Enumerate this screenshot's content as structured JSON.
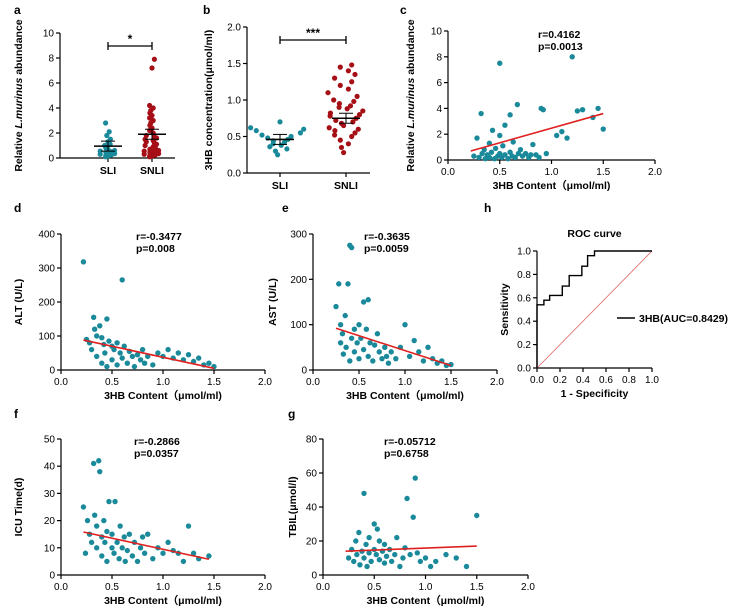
{
  "colors": {
    "teal": "#1a8a9b",
    "red": "#a50f15",
    "fit": "#e02020",
    "roc": "#000000",
    "ref": "#e06060"
  },
  "chart_data": [
    {
      "id": "a",
      "type": "scatter",
      "panel_letter": "a",
      "categories": [
        "SLI",
        "SNLI"
      ],
      "ylabel_prefix": "Relative ",
      "ylabel_italic": "L.murinus",
      "ylabel_suffix": " abundance",
      "ylim": [
        0,
        10
      ],
      "yticks": [
        "0",
        "2",
        "4",
        "6",
        "8",
        "10"
      ],
      "significance": "*",
      "groups": [
        {
          "name": "SLI",
          "mean": 0.95,
          "values": [
            0.1,
            0.15,
            0.2,
            0.25,
            0.3,
            0.35,
            0.4,
            0.45,
            0.5,
            0.55,
            0.6,
            0.7,
            0.8,
            0.9,
            1.0,
            1.1,
            1.3,
            1.5,
            1.8,
            2.1,
            2.8
          ]
        },
        {
          "name": "SNLI",
          "mean": 1.9,
          "values": [
            0.1,
            0.15,
            0.2,
            0.25,
            0.3,
            0.35,
            0.4,
            0.45,
            0.5,
            0.55,
            0.6,
            0.65,
            0.7,
            0.8,
            0.9,
            1.0,
            1.1,
            1.2,
            1.3,
            1.4,
            1.5,
            1.6,
            1.7,
            1.8,
            2.0,
            2.2,
            2.4,
            2.6,
            2.8,
            3.0,
            3.2,
            3.4,
            3.6,
            3.8,
            4.0,
            4.2,
            7.2,
            7.9
          ]
        }
      ]
    },
    {
      "id": "b",
      "type": "scatter",
      "panel_letter": "b",
      "categories": [
        "SLI",
        "SNLI"
      ],
      "ylabel": "3HB concentration(μmol/ml)",
      "ylim": [
        0,
        2
      ],
      "yticks": [
        "0.0",
        "0.5",
        "1.0",
        "1.5",
        "2.0"
      ],
      "significance": "***",
      "groups": [
        {
          "name": "SLI",
          "mean": 0.46,
          "values": [
            0.25,
            0.3,
            0.33,
            0.36,
            0.38,
            0.4,
            0.42,
            0.44,
            0.46,
            0.48,
            0.5,
            0.52,
            0.55,
            0.58,
            0.6,
            0.62,
            0.7
          ]
        },
        {
          "name": "SNLI",
          "mean": 0.75,
          "values": [
            0.28,
            0.35,
            0.4,
            0.45,
            0.5,
            0.52,
            0.55,
            0.58,
            0.6,
            0.62,
            0.65,
            0.68,
            0.7,
            0.72,
            0.75,
            0.78,
            0.8,
            0.82,
            0.85,
            0.88,
            0.9,
            0.92,
            0.95,
            0.98,
            1.0,
            1.05,
            1.1,
            1.15,
            1.2,
            1.25,
            1.3,
            1.35,
            1.4,
            1.45,
            1.48
          ]
        }
      ]
    },
    {
      "id": "c",
      "type": "scatter",
      "panel_letter": "c",
      "xlabel": "3HB Content（μmol/ml)",
      "ylabel_prefix": "Relative ",
      "ylabel_italic": "L.murinus",
      "ylabel_suffix": " abundance",
      "xlim": [
        0,
        2
      ],
      "ylim": [
        0,
        10
      ],
      "xticks": [
        "0.0",
        "0.5",
        "1.0",
        "1.5",
        "2.0"
      ],
      "yticks": [
        "0",
        "2",
        "4",
        "6",
        "8",
        "10"
      ],
      "r_text": "r=0.4162",
      "p_text": "p=0.0013",
      "fit": {
        "x": [
          0.22,
          1.5
        ],
        "y": [
          0.7,
          3.6
        ]
      },
      "points": [
        [
          0.25,
          0.3
        ],
        [
          0.28,
          1.7
        ],
        [
          0.3,
          0.2
        ],
        [
          0.32,
          3.6
        ],
        [
          0.33,
          0.5
        ],
        [
          0.35,
          0.8
        ],
        [
          0.36,
          0.1
        ],
        [
          0.38,
          0.4
        ],
        [
          0.4,
          1.3
        ],
        [
          0.4,
          0.2
        ],
        [
          0.42,
          0.6
        ],
        [
          0.43,
          2.3
        ],
        [
          0.45,
          0.1
        ],
        [
          0.46,
          0.9
        ],
        [
          0.48,
          0.3
        ],
        [
          0.5,
          7.5
        ],
        [
          0.5,
          1.9
        ],
        [
          0.5,
          0.5
        ],
        [
          0.52,
          0.2
        ],
        [
          0.53,
          1.1
        ],
        [
          0.55,
          0.4
        ],
        [
          0.55,
          2.7
        ],
        [
          0.58,
          0.1
        ],
        [
          0.6,
          0.6
        ],
        [
          0.6,
          3.5
        ],
        [
          0.62,
          0.3
        ],
        [
          0.63,
          1.4
        ],
        [
          0.65,
          0.2
        ],
        [
          0.67,
          4.3
        ],
        [
          0.68,
          0.5
        ],
        [
          0.7,
          0.8
        ],
        [
          0.72,
          0.3
        ],
        [
          0.75,
          0.5
        ],
        [
          0.78,
          0.2
        ],
        [
          0.8,
          0.4
        ],
        [
          0.82,
          1.2
        ],
        [
          0.85,
          0.4
        ],
        [
          0.88,
          0.2
        ],
        [
          0.9,
          4.0
        ],
        [
          0.92,
          3.9
        ],
        [
          0.95,
          0.5
        ],
        [
          1.05,
          1.9
        ],
        [
          1.1,
          2.2
        ],
        [
          1.15,
          1.7
        ],
        [
          1.2,
          8.0
        ],
        [
          1.25,
          3.8
        ],
        [
          1.3,
          3.9
        ],
        [
          1.4,
          3.3
        ],
        [
          1.45,
          4.0
        ],
        [
          1.5,
          2.4
        ]
      ]
    },
    {
      "id": "d",
      "type": "scatter",
      "panel_letter": "d",
      "xlabel": "3HB Content（μmol/ml)",
      "ylabel": "ALT (U/L)",
      "xlim": [
        0,
        2
      ],
      "ylim": [
        0,
        400
      ],
      "xticks": [
        "0.0",
        "0.5",
        "1.0",
        "1.5",
        "2.0"
      ],
      "yticks": [
        "0",
        "100",
        "200",
        "300",
        "400"
      ],
      "r_text": "r=-0.3477",
      "p_text": "p=0.008",
      "fit": {
        "x": [
          0.22,
          1.5
        ],
        "y": [
          88,
          5
        ]
      },
      "points": [
        [
          0.22,
          318
        ],
        [
          0.25,
          90
        ],
        [
          0.28,
          80
        ],
        [
          0.3,
          60
        ],
        [
          0.32,
          155
        ],
        [
          0.33,
          120
        ],
        [
          0.35,
          100
        ],
        [
          0.35,
          40
        ],
        [
          0.38,
          130
        ],
        [
          0.4,
          95
        ],
        [
          0.4,
          20
        ],
        [
          0.42,
          75
        ],
        [
          0.43,
          50
        ],
        [
          0.45,
          150
        ],
        [
          0.45,
          10
        ],
        [
          0.47,
          85
        ],
        [
          0.5,
          70
        ],
        [
          0.5,
          30
        ],
        [
          0.52,
          60
        ],
        [
          0.55,
          80
        ],
        [
          0.55,
          15
        ],
        [
          0.58,
          50
        ],
        [
          0.6,
          265
        ],
        [
          0.6,
          35
        ],
        [
          0.62,
          70
        ],
        [
          0.65,
          20
        ],
        [
          0.67,
          55
        ],
        [
          0.7,
          40
        ],
        [
          0.72,
          10
        ],
        [
          0.75,
          45
        ],
        [
          0.78,
          30
        ],
        [
          0.8,
          60
        ],
        [
          0.82,
          20
        ],
        [
          0.85,
          40
        ],
        [
          0.9,
          15
        ],
        [
          0.95,
          50
        ],
        [
          1.0,
          40
        ],
        [
          1.05,
          60
        ],
        [
          1.1,
          35
        ],
        [
          1.15,
          50
        ],
        [
          1.2,
          30
        ],
        [
          1.25,
          45
        ],
        [
          1.3,
          25
        ],
        [
          1.35,
          35
        ],
        [
          1.4,
          15
        ],
        [
          1.45,
          20
        ],
        [
          1.5,
          10
        ]
      ]
    },
    {
      "id": "e",
      "type": "scatter",
      "panel_letter": "e",
      "xlabel": "3HB Content（μmol/ml)",
      "ylabel": "AST (U/L)",
      "xlim": [
        0,
        2
      ],
      "ylim": [
        0,
        300
      ],
      "xticks": [
        "0.0",
        "0.5",
        "1.0",
        "1.5",
        "2.0"
      ],
      "yticks": [
        "0",
        "100",
        "200",
        "300"
      ],
      "r_text": "r=-0.3635",
      "p_text": "p=0.0059",
      "fit": {
        "x": [
          0.25,
          1.5
        ],
        "y": [
          92,
          10
        ]
      },
      "points": [
        [
          0.25,
          140
        ],
        [
          0.28,
          190
        ],
        [
          0.3,
          100
        ],
        [
          0.3,
          60
        ],
        [
          0.32,
          80
        ],
        [
          0.33,
          35
        ],
        [
          0.35,
          120
        ],
        [
          0.36,
          50
        ],
        [
          0.38,
          190
        ],
        [
          0.4,
          275
        ],
        [
          0.4,
          20
        ],
        [
          0.42,
          270
        ],
        [
          0.42,
          70
        ],
        [
          0.45,
          90
        ],
        [
          0.45,
          40
        ],
        [
          0.48,
          60
        ],
        [
          0.5,
          100
        ],
        [
          0.5,
          25
        ],
        [
          0.52,
          70
        ],
        [
          0.55,
          150
        ],
        [
          0.55,
          45
        ],
        [
          0.58,
          90
        ],
        [
          0.6,
          155
        ],
        [
          0.6,
          30
        ],
        [
          0.62,
          60
        ],
        [
          0.65,
          20
        ],
        [
          0.67,
          55
        ],
        [
          0.7,
          80
        ],
        [
          0.72,
          40
        ],
        [
          0.75,
          25
        ],
        [
          0.78,
          50
        ],
        [
          0.8,
          30
        ],
        [
          0.82,
          15
        ],
        [
          0.85,
          40
        ],
        [
          0.9,
          25
        ],
        [
          0.95,
          50
        ],
        [
          1.0,
          100
        ],
        [
          1.05,
          30
        ],
        [
          1.1,
          65
        ],
        [
          1.15,
          40
        ],
        [
          1.2,
          20
        ],
        [
          1.25,
          50
        ],
        [
          1.3,
          25
        ],
        [
          1.35,
          15
        ],
        [
          1.4,
          20
        ],
        [
          1.45,
          10
        ],
        [
          1.5,
          12
        ]
      ]
    },
    {
      "id": "h",
      "type": "line",
      "panel_letter": "h",
      "title": "ROC curve",
      "xlabel": "1 - Specificity",
      "ylabel": "Sensitivity",
      "xlim": [
        0,
        1
      ],
      "ylim": [
        0,
        1
      ],
      "xticks": [
        "0.0",
        "0.2",
        "0.4",
        "0.6",
        "0.8",
        "1.0"
      ],
      "yticks": [
        "0.0",
        "0.2",
        "0.4",
        "0.6",
        "0.8",
        "1.0"
      ],
      "legend": "3HB(AUC=0.8429)",
      "roc": [
        [
          0,
          0
        ],
        [
          0,
          0.54
        ],
        [
          0.06,
          0.54
        ],
        [
          0.06,
          0.58
        ],
        [
          0.11,
          0.58
        ],
        [
          0.11,
          0.62
        ],
        [
          0.22,
          0.62
        ],
        [
          0.22,
          0.7
        ],
        [
          0.28,
          0.7
        ],
        [
          0.28,
          0.79
        ],
        [
          0.39,
          0.79
        ],
        [
          0.39,
          0.87
        ],
        [
          0.44,
          0.87
        ],
        [
          0.44,
          0.96
        ],
        [
          0.5,
          0.96
        ],
        [
          0.5,
          1.0
        ],
        [
          1.0,
          1.0
        ]
      ]
    },
    {
      "id": "f",
      "type": "scatter",
      "panel_letter": "f",
      "xlabel": "3HB Content（μmol/ml)",
      "ylabel": "ICU Time(d)",
      "xlim": [
        0,
        2
      ],
      "ylim": [
        0,
        50
      ],
      "xticks": [
        "0.0",
        "0.5",
        "1.0",
        "1.5",
        "2.0"
      ],
      "yticks": [
        "0",
        "10",
        "20",
        "30",
        "40",
        "50"
      ],
      "r_text": "r=-0.2866",
      "p_text": "p=0.0357",
      "fit": {
        "x": [
          0.22,
          1.45
        ],
        "y": [
          15.8,
          5.8
        ]
      },
      "points": [
        [
          0.22,
          25
        ],
        [
          0.24,
          8
        ],
        [
          0.26,
          20
        ],
        [
          0.28,
          15
        ],
        [
          0.3,
          12
        ],
        [
          0.32,
          41
        ],
        [
          0.33,
          22
        ],
        [
          0.35,
          18
        ],
        [
          0.35,
          10
        ],
        [
          0.37,
          42
        ],
        [
          0.38,
          38
        ],
        [
          0.4,
          14
        ],
        [
          0.4,
          7
        ],
        [
          0.42,
          20
        ],
        [
          0.43,
          12
        ],
        [
          0.45,
          16
        ],
        [
          0.45,
          5
        ],
        [
          0.47,
          27
        ],
        [
          0.5,
          10
        ],
        [
          0.5,
          15
        ],
        [
          0.52,
          8
        ],
        [
          0.53,
          27
        ],
        [
          0.55,
          12
        ],
        [
          0.57,
          6
        ],
        [
          0.58,
          18
        ],
        [
          0.6,
          10
        ],
        [
          0.62,
          14
        ],
        [
          0.63,
          5
        ],
        [
          0.65,
          9
        ],
        [
          0.67,
          15
        ],
        [
          0.7,
          7
        ],
        [
          0.72,
          12
        ],
        [
          0.75,
          5
        ],
        [
          0.78,
          10
        ],
        [
          0.8,
          14
        ],
        [
          0.82,
          8
        ],
        [
          0.85,
          15
        ],
        [
          0.9,
          6
        ],
        [
          0.95,
          10
        ],
        [
          1.0,
          8
        ],
        [
          1.05,
          12
        ],
        [
          1.1,
          9
        ],
        [
          1.15,
          8
        ],
        [
          1.2,
          5
        ],
        [
          1.25,
          18
        ],
        [
          1.3,
          8
        ],
        [
          1.35,
          6
        ],
        [
          1.45,
          7
        ]
      ]
    },
    {
      "id": "g",
      "type": "scatter",
      "panel_letter": "g",
      "xlabel": "3HB Content（μmol/ml)",
      "ylabel": "TBIL(μmol/l)",
      "xlim": [
        0,
        2
      ],
      "ylim": [
        0,
        80
      ],
      "xticks": [
        "0.0",
        "0.5",
        "1.0",
        "1.5",
        "2.0"
      ],
      "yticks": [
        "0",
        "20",
        "40",
        "60",
        "80"
      ],
      "r_text": "r=-0.05712",
      "p_text": "p=0.6758",
      "fit": {
        "x": [
          0.22,
          1.5
        ],
        "y": [
          14,
          17
        ]
      },
      "points": [
        [
          0.25,
          10
        ],
        [
          0.28,
          15
        ],
        [
          0.3,
          8
        ],
        [
          0.32,
          20
        ],
        [
          0.33,
          12
        ],
        [
          0.35,
          25
        ],
        [
          0.36,
          6
        ],
        [
          0.38,
          14
        ],
        [
          0.4,
          48
        ],
        [
          0.4,
          10
        ],
        [
          0.42,
          18
        ],
        [
          0.43,
          5
        ],
        [
          0.45,
          22
        ],
        [
          0.45,
          13
        ],
        [
          0.47,
          8
        ],
        [
          0.5,
          30
        ],
        [
          0.5,
          15
        ],
        [
          0.52,
          12
        ],
        [
          0.53,
          27
        ],
        [
          0.55,
          9
        ],
        [
          0.55,
          20
        ],
        [
          0.58,
          14
        ],
        [
          0.6,
          7
        ],
        [
          0.6,
          18
        ],
        [
          0.62,
          11
        ],
        [
          0.65,
          15
        ],
        [
          0.67,
          8
        ],
        [
          0.7,
          12
        ],
        [
          0.72,
          22
        ],
        [
          0.75,
          5
        ],
        [
          0.78,
          10
        ],
        [
          0.8,
          16
        ],
        [
          0.82,
          45
        ],
        [
          0.85,
          12
        ],
        [
          0.88,
          34
        ],
        [
          0.9,
          57
        ],
        [
          0.92,
          13
        ],
        [
          0.95,
          8
        ],
        [
          1.0,
          10
        ],
        [
          1.05,
          5
        ],
        [
          1.1,
          8
        ],
        [
          1.2,
          12
        ],
        [
          1.3,
          10
        ],
        [
          1.4,
          5
        ],
        [
          1.5,
          35
        ]
      ]
    }
  ]
}
